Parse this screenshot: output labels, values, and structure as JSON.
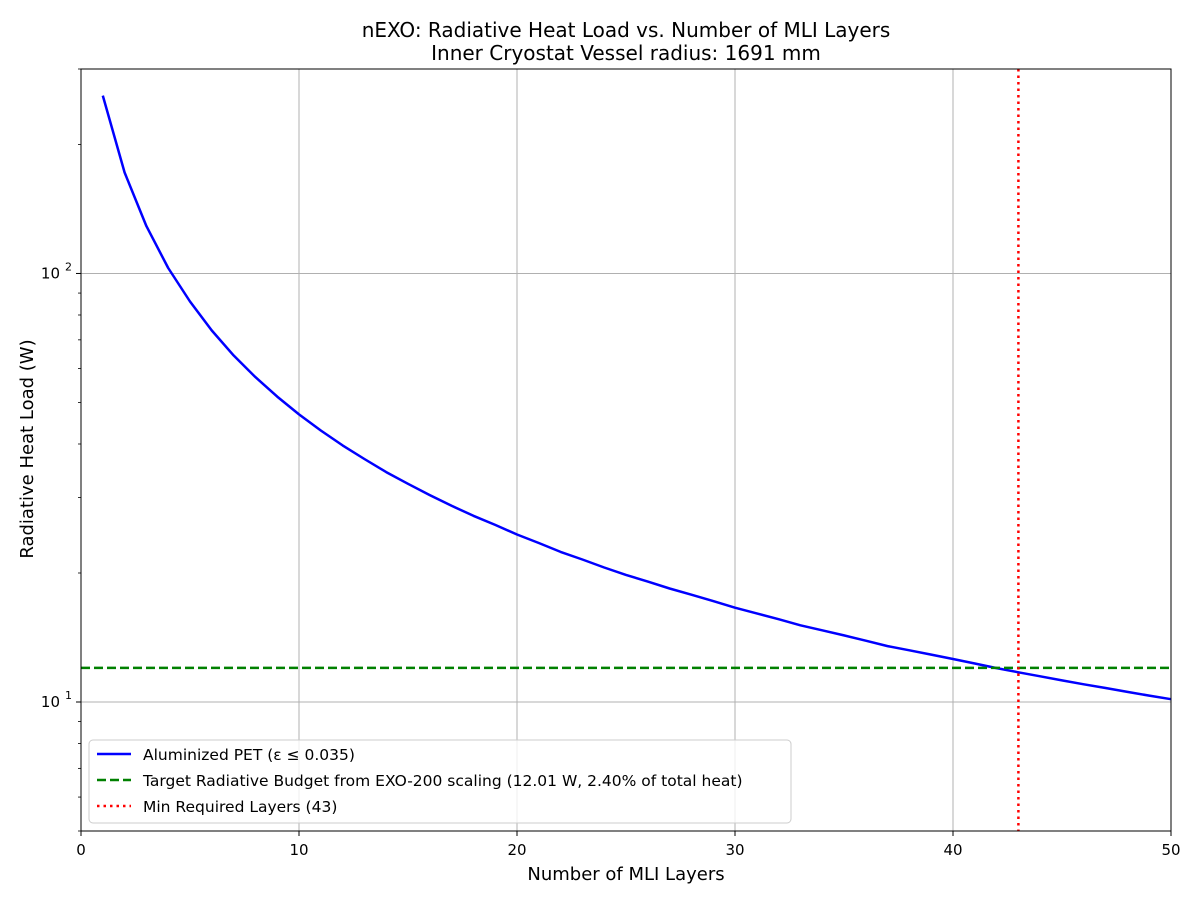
{
  "chart_data": {
    "type": "line",
    "title": "nEXO: Radiative Heat Load vs. Number of MLI Layers",
    "subtitle": "Inner Cryostat Vessel radius: 1691 mm",
    "xlabel": "Number of MLI Layers",
    "ylabel": "Radiative Heat Load (W)",
    "xlim": [
      0,
      50
    ],
    "ylim": [
      5,
      300
    ],
    "yscale": "log",
    "grid": true,
    "legend_position": "lower-left",
    "x_ticks": [
      0,
      10,
      20,
      30,
      40,
      50
    ],
    "y_ticks": [
      {
        "value": 10,
        "base": "10",
        "exp": "1"
      },
      {
        "value": 100,
        "base": "10",
        "exp": "2"
      }
    ],
    "series": [
      {
        "name": "Aluminized PET (ε ≤ 0.035)",
        "style": "solid",
        "color": "#0000ff",
        "x": [
          1,
          2,
          3,
          4,
          5,
          6,
          7,
          8,
          9,
          10,
          11,
          12,
          13,
          14,
          15,
          16,
          17,
          18,
          19,
          20,
          21,
          22,
          23,
          24,
          25,
          26,
          27,
          28,
          29,
          30,
          31,
          32,
          33,
          34,
          35,
          36,
          37,
          38,
          39,
          40,
          41,
          42,
          43,
          44,
          45,
          46,
          47,
          48,
          49,
          50
        ],
        "y": [
          260.0,
          172.0,
          129.0,
          103.0,
          86.0,
          73.6,
          64.4,
          57.3,
          51.6,
          46.9,
          43.0,
          39.7,
          36.9,
          34.4,
          32.3,
          30.4,
          28.7,
          27.2,
          25.9,
          24.6,
          23.5,
          22.4,
          21.5,
          20.6,
          19.8,
          19.1,
          18.4,
          17.8,
          17.2,
          16.6,
          16.1,
          15.6,
          15.1,
          14.7,
          14.3,
          13.9,
          13.5,
          13.2,
          12.9,
          12.6,
          12.3,
          12.0,
          11.73,
          11.48,
          11.23,
          11.0,
          10.78,
          10.56,
          10.35,
          10.15
        ]
      },
      {
        "name": "Target Radiative Budget from EXO-200 scaling (12.01 W, 2.40% of total heat)",
        "style": "dashed",
        "color": "#008000",
        "orientation": "horizontal",
        "value": 12.01
      },
      {
        "name": "Min Required Layers (43)",
        "style": "dotted",
        "color": "#ff0000",
        "orientation": "vertical",
        "value": 43
      }
    ]
  }
}
